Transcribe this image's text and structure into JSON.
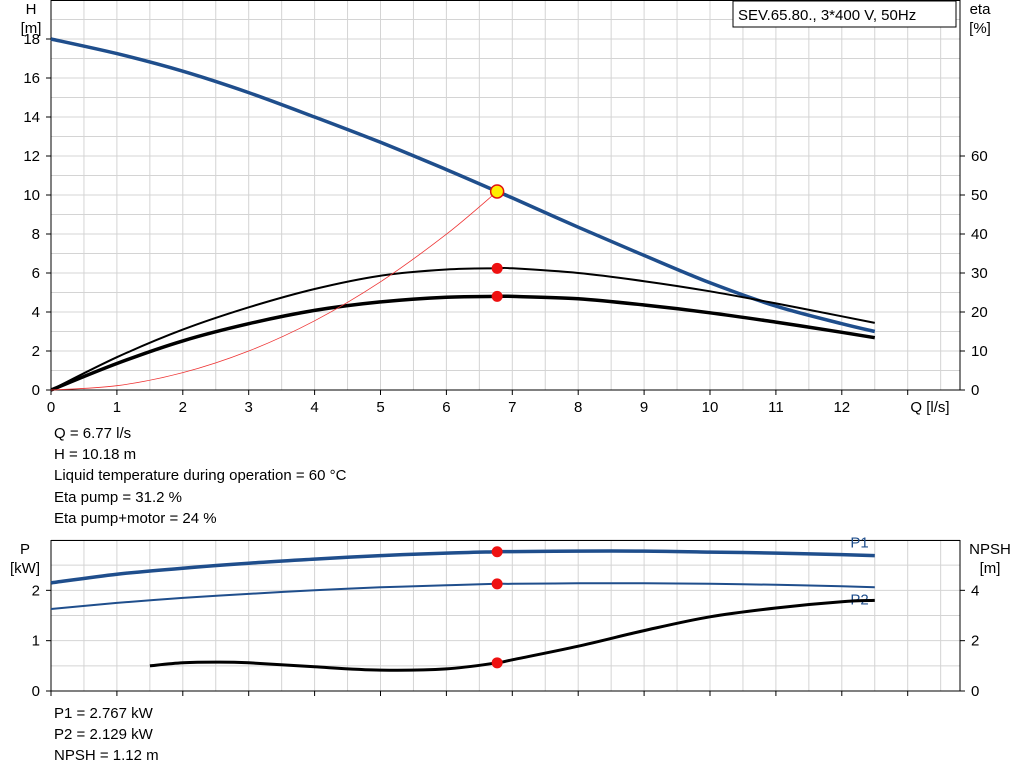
{
  "chart_data": [
    {
      "type": "line",
      "title": "SEV.65.80., 3*400 V, 50Hz",
      "xlabel": "Q [l/s]",
      "ylabel": "H\n[m]",
      "y2label": "eta\n[%]",
      "xlim": [
        0,
        13
      ],
      "ylim": [
        0,
        20
      ],
      "y2lim": [
        0,
        100
      ],
      "x_ticks": [
        0,
        1,
        2,
        3,
        4,
        5,
        6,
        7,
        8,
        9,
        10,
        11,
        12
      ],
      "y_ticks": [
        0,
        2,
        4,
        6,
        8,
        10,
        12,
        14,
        16,
        18
      ],
      "y2_ticks": [
        0,
        10,
        20,
        30,
        40,
        50,
        60
      ],
      "grid": true,
      "series": [
        {
          "axis": "left",
          "color": "#1f4e8c",
          "x": [
            0,
            1,
            2,
            3,
            4,
            5,
            6,
            6.77,
            7,
            8,
            9,
            10,
            11,
            12,
            12.5
          ],
          "values": [
            18.0,
            17.25,
            16.35,
            15.25,
            14.0,
            12.7,
            11.3,
            10.18,
            9.85,
            8.35,
            6.9,
            5.5,
            4.3,
            3.4,
            3.0
          ]
        },
        {
          "axis": "right",
          "color": "#000000",
          "x": [
            0,
            1,
            2,
            3,
            4,
            5,
            6,
            6.77,
            7,
            8,
            9,
            10,
            11,
            12,
            12.5
          ],
          "values": [
            0,
            8.4,
            15.5,
            21.2,
            25.9,
            29.3,
            30.9,
            31.2,
            31.2,
            30.0,
            27.9,
            25.3,
            22.2,
            18.9,
            17.2
          ]
        },
        {
          "axis": "right",
          "color": "#000000",
          "x": [
            0,
            1,
            2,
            3,
            4,
            5,
            6,
            6.77,
            7,
            8,
            9,
            10,
            11,
            12,
            12.5
          ],
          "values": [
            0,
            6.8,
            12.6,
            17.0,
            20.4,
            22.6,
            23.8,
            24.0,
            24.0,
            23.4,
            21.8,
            19.8,
            17.4,
            14.8,
            13.4
          ]
        },
        {
          "axis": "left",
          "color": "#ee3333",
          "x": [
            0,
            1,
            2,
            3,
            4,
            5,
            6,
            6.77
          ],
          "values": [
            0,
            0.22,
            0.89,
            2.0,
            3.55,
            5.55,
            7.99,
            10.18
          ]
        }
      ],
      "operating_point": {
        "x": 6.77,
        "H": 10.18,
        "eta_pump": 31.2,
        "eta_pump_motor": 24
      }
    },
    {
      "type": "line",
      "xlabel": "",
      "ylabel": "P\n[kW]",
      "y2label": "NPSH\n[m]",
      "xlim": [
        0,
        13
      ],
      "ylim": [
        0,
        3
      ],
      "y2lim": [
        0,
        6
      ],
      "y_ticks": [
        0,
        1,
        2
      ],
      "y2_ticks": [
        0,
        2,
        4
      ],
      "grid": true,
      "series": [
        {
          "name": "P1",
          "axis": "left",
          "color": "#1f4e8c",
          "x": [
            0,
            1,
            2,
            3,
            4,
            5,
            6,
            6.77,
            7,
            8,
            9,
            10,
            11,
            12,
            12.5
          ],
          "values": [
            2.15,
            2.32,
            2.44,
            2.54,
            2.62,
            2.69,
            2.74,
            2.767,
            2.77,
            2.78,
            2.78,
            2.76,
            2.74,
            2.71,
            2.69
          ]
        },
        {
          "name": "P2",
          "axis": "left",
          "color": "#1f4e8c",
          "x": [
            0,
            1,
            2,
            3,
            4,
            5,
            6,
            6.77,
            7,
            8,
            9,
            10,
            11,
            12,
            12.5
          ],
          "values": [
            1.63,
            1.75,
            1.85,
            1.93,
            2.0,
            2.06,
            2.1,
            2.129,
            2.13,
            2.14,
            2.14,
            2.13,
            2.11,
            2.08,
            2.06
          ]
        },
        {
          "axis": "right",
          "color": "#000000",
          "x": [
            1.5,
            2,
            2.5,
            3,
            4,
            5,
            6,
            6.77,
            7,
            8,
            9,
            10,
            11,
            12,
            12.5
          ],
          "values": [
            1.0,
            1.12,
            1.15,
            1.12,
            0.96,
            0.83,
            0.88,
            1.12,
            1.24,
            1.78,
            2.4,
            2.95,
            3.3,
            3.55,
            3.6
          ]
        }
      ],
      "operating_point": {
        "x": 6.77,
        "P1": 2.767,
        "P2": 2.129,
        "NPSH": 1.12
      }
    }
  ],
  "info_top": [
    "Q = 6.77 l/s",
    "H = 10.18 m",
    "Liquid temperature during operation = 60 °C",
    "Eta pump = 31.2 %",
    "Eta pump+motor = 24 %"
  ],
  "info_bottom": [
    "P1 = 2.767 kW",
    "P2 = 2.129 kW",
    "NPSH = 1.12 m"
  ]
}
